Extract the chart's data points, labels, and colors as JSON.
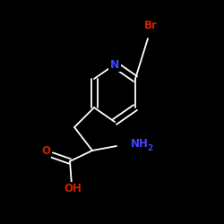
{
  "background_color": "#000000",
  "bond_color": "#ffffff",
  "atom_colors": {
    "N": "#4444ff",
    "O": "#cc2200",
    "Br": "#cc2200",
    "C": "#ffffff",
    "H": "#ffffff"
  },
  "figsize": [
    2.5,
    2.5
  ],
  "dpi": 100
}
